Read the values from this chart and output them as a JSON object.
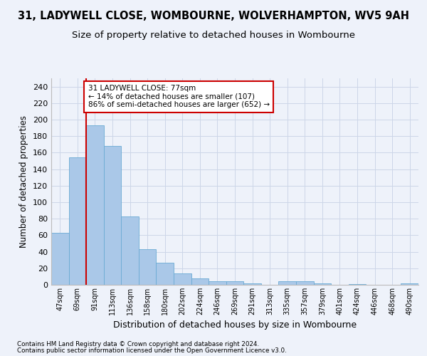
{
  "title": "31, LADYWELL CLOSE, WOMBOURNE, WOLVERHAMPTON, WV5 9AH",
  "subtitle": "Size of property relative to detached houses in Wombourne",
  "xlabel": "Distribution of detached houses by size in Wombourne",
  "ylabel": "Number of detached properties",
  "categories": [
    "47sqm",
    "69sqm",
    "91sqm",
    "113sqm",
    "136sqm",
    "158sqm",
    "180sqm",
    "202sqm",
    "224sqm",
    "246sqm",
    "269sqm",
    "291sqm",
    "313sqm",
    "335sqm",
    "357sqm",
    "379sqm",
    "401sqm",
    "424sqm",
    "446sqm",
    "468sqm",
    "490sqm"
  ],
  "values": [
    63,
    154,
    193,
    168,
    83,
    43,
    27,
    14,
    8,
    4,
    4,
    2,
    0,
    4,
    4,
    2,
    0,
    1,
    0,
    0,
    2
  ],
  "bar_color": "#aac8e8",
  "bar_edge_color": "#6aaad4",
  "red_line_x": 1.5,
  "annotation_text": "31 LADYWELL CLOSE: 77sqm\n← 14% of detached houses are smaller (107)\n86% of semi-detached houses are larger (652) →",
  "annotation_box_color": "#ffffff",
  "annotation_box_edge": "#cc0000",
  "red_line_color": "#cc0000",
  "grid_color": "#ccd6e8",
  "background_color": "#eef2fa",
  "footer_line1": "Contains HM Land Registry data © Crown copyright and database right 2024.",
  "footer_line2": "Contains public sector information licensed under the Open Government Licence v3.0.",
  "ylim": [
    0,
    250
  ],
  "yticks": [
    0,
    20,
    40,
    60,
    80,
    100,
    120,
    140,
    160,
    180,
    200,
    220,
    240
  ],
  "title_fontsize": 10.5,
  "subtitle_fontsize": 9.5
}
